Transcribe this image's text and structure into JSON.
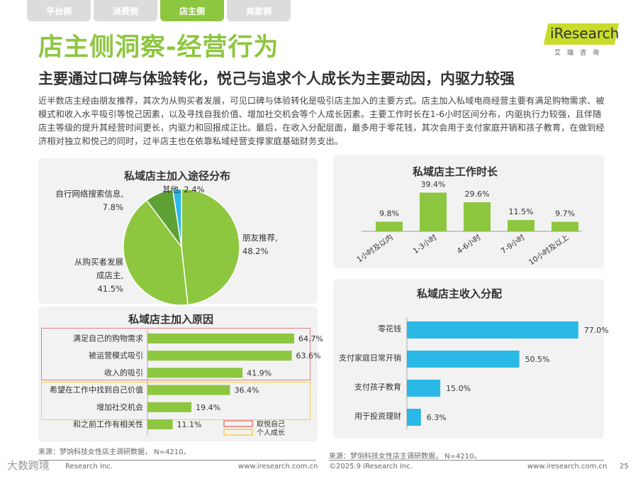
{
  "tabs": [
    {
      "label": "平台侧",
      "active": false
    },
    {
      "label": "消费侧",
      "active": false
    },
    {
      "label": "店主侧",
      "active": true
    },
    {
      "label": "商家侧",
      "active": false
    }
  ],
  "header": {
    "title": "店主侧洞察-经营行为",
    "subtitle": "主要通过口碑与体验转化，悦己与追求个人成长为主要动因，内驱力较强",
    "logo_text": "iResearch",
    "logo_sub": "艾瑞咨询"
  },
  "intro": "近半数店主经由朋友推荐，其次为从购买者发展，可见口碑与体验转化是吸引店主加入的主要方式。店主加入私域电商经营主要有满足购物需求、被模式和收入水平吸引等悦己因素，以及寻找自我价值、增加社交机会等个人成长因素。主要工作时长在1-6小时区间分布，内驱执行力较强，且伴随店主等级的提升其经营时间更长，内驱力和回报成正比。最后，在收入分配层面，最多用于零花钱，其次会用于支付家庭开销和孩子教育，在做到经济相对独立和悦己的同时，过半店主也在依靠私域经营支撑家庭基础财务支出。",
  "colors": {
    "green": "#8dc63f",
    "dark_green": "#5ea134",
    "cyan": "#2ab8e6",
    "red_box": "#e67c7c",
    "yellow_box": "#f2cf4a"
  },
  "chart_data": [
    {
      "type": "pie",
      "title": "私域店主加入途径分布",
      "slices": [
        {
          "label": "朋友推荐,",
          "value": 48.2,
          "display": "48.2%",
          "color": "#8dc63f"
        },
        {
          "label": "从购买者发展成店主,",
          "value": 41.5,
          "display": "41.5%",
          "color": "#8dc63f"
        },
        {
          "label": "自行网络搜索信息,",
          "value": 7.8,
          "display": "7.8%",
          "color": "#5ea134"
        },
        {
          "label": "其他,",
          "value": 2.4,
          "display": "2.4%",
          "color": "#2ab8e6"
        }
      ]
    },
    {
      "type": "bar",
      "orientation": "horizontal",
      "title": "私域店主加入原因",
      "categories": [
        "满足自己的购物需求",
        "被运营模式吸引",
        "收入的吸引",
        "希望在工作中找到自己价值",
        "增加社交机会",
        "和之前工作有相关性"
      ],
      "values": [
        64.7,
        63.6,
        41.9,
        36.4,
        19.4,
        11.1
      ],
      "labels": [
        "64.7%",
        "63.6%",
        "41.9%",
        "36.4%",
        "19.4%",
        "11.1%"
      ],
      "xlim": [
        0,
        100
      ],
      "legend": [
        {
          "label": "取悦自己",
          "color": "#e67c7c"
        },
        {
          "label": "个人成长",
          "color": "#f2cf4a"
        }
      ]
    },
    {
      "type": "bar",
      "orientation": "vertical",
      "title": "私域店主工作时长",
      "categories": [
        "1小时及以内",
        "1-3小时",
        "4-6小时",
        "7-9小时",
        "10小时及以上"
      ],
      "values": [
        9.8,
        39.4,
        29.6,
        11.5,
        9.7
      ],
      "labels": [
        "9.8%",
        "39.4%",
        "29.6%",
        "11.5%",
        "9.7%"
      ],
      "ylim": [
        0,
        45
      ]
    },
    {
      "type": "bar",
      "orientation": "horizontal",
      "title": "私域店主收入分配",
      "categories": [
        "零花钱",
        "支付家庭日常开销",
        "支付孩子教育",
        "用于投资理财"
      ],
      "values": [
        77.0,
        50.5,
        15.0,
        6.3
      ],
      "labels": [
        "77.0%",
        "50.5%",
        "15.0%",
        "6.3%"
      ],
      "xlim": [
        0,
        100
      ]
    }
  ],
  "sources": {
    "left": "来源：梦饷科技女性店主调研数据， N=4210。",
    "right": "来源：梦饷科技女性店主调研数据， N=4210。"
  },
  "footer": {
    "copyright_left": "Research Inc.",
    "site_left": "www.iresearch.com.cn",
    "copyright_right": "©2025.9 iResearch Inc.",
    "site_right": "www.iresearch.com.cn",
    "page": "25",
    "watermark": "大数跨境"
  }
}
